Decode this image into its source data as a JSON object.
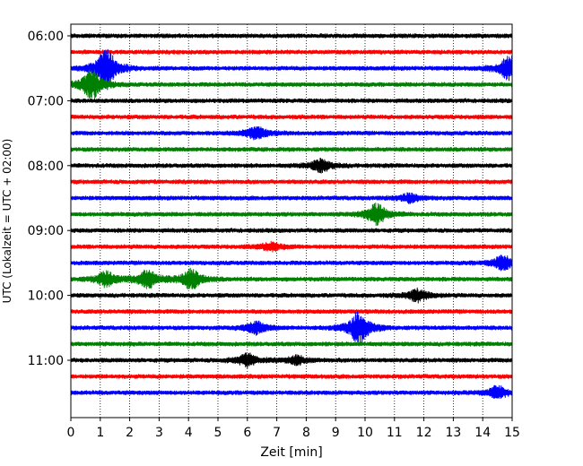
{
  "chart_data": {
    "type": "line",
    "title": "",
    "xlabel": "Zeit  [min]",
    "ylabel": "UTC (Lokalzeit = UTC + 02:00)",
    "xlim": [
      0,
      15
    ],
    "x_ticks": [
      0,
      1,
      2,
      3,
      4,
      5,
      6,
      7,
      8,
      9,
      10,
      11,
      12,
      13,
      14,
      15
    ],
    "x_tick_labels": [
      "0",
      "1",
      "2",
      "3",
      "4",
      "5",
      "6",
      "7",
      "8",
      "9",
      "10",
      "11",
      "12",
      "13",
      "14",
      "15"
    ],
    "y_tick_labels": [
      "06:00",
      "07:00",
      "08:00",
      "09:00",
      "10:00",
      "11:00"
    ],
    "grid": "vertical dotted",
    "trace_colors": [
      "#000000",
      "#ff0000",
      "#0000ff",
      "#008000"
    ],
    "series": [
      {
        "start": "06:00",
        "events": []
      },
      {
        "start": "06:15",
        "events": []
      },
      {
        "start": "06:30",
        "events": [
          {
            "t": 1.2,
            "amp": 1.0
          },
          {
            "t": 14.9,
            "amp": 0.6
          }
        ]
      },
      {
        "start": "06:45",
        "events": [
          {
            "t": 0.7,
            "amp": 0.75
          }
        ]
      },
      {
        "start": "07:00",
        "events": []
      },
      {
        "start": "07:15",
        "events": []
      },
      {
        "start": "07:30",
        "events": [
          {
            "t": 6.3,
            "amp": 0.3
          }
        ]
      },
      {
        "start": "07:45",
        "events": []
      },
      {
        "start": "08:00",
        "events": [
          {
            "t": 8.5,
            "amp": 0.3
          }
        ]
      },
      {
        "start": "08:15",
        "events": []
      },
      {
        "start": "08:30",
        "events": [
          {
            "t": 11.5,
            "amp": 0.2
          }
        ]
      },
      {
        "start": "08:45",
        "events": [
          {
            "t": 10.4,
            "amp": 0.5
          }
        ]
      },
      {
        "start": "09:00",
        "events": []
      },
      {
        "start": "09:15",
        "events": [
          {
            "t": 6.8,
            "amp": 0.2
          }
        ]
      },
      {
        "start": "09:30",
        "events": [
          {
            "t": 14.7,
            "amp": 0.35
          }
        ]
      },
      {
        "start": "09:45",
        "events": [
          {
            "t": 1.2,
            "amp": 0.35
          },
          {
            "t": 2.6,
            "amp": 0.45
          },
          {
            "t": 4.1,
            "amp": 0.5
          }
        ]
      },
      {
        "start": "10:00",
        "events": [
          {
            "t": 11.8,
            "amp": 0.3
          }
        ]
      },
      {
        "start": "10:15",
        "events": []
      },
      {
        "start": "10:30",
        "events": [
          {
            "t": 6.3,
            "amp": 0.3
          },
          {
            "t": 9.8,
            "amp": 0.8
          }
        ]
      },
      {
        "start": "10:45",
        "events": []
      },
      {
        "start": "11:00",
        "events": [
          {
            "t": 6.0,
            "amp": 0.3
          },
          {
            "t": 7.7,
            "amp": 0.2
          }
        ]
      },
      {
        "start": "11:15",
        "events": []
      },
      {
        "start": "11:30",
        "events": [
          {
            "t": 14.5,
            "amp": 0.3
          }
        ]
      }
    ]
  }
}
